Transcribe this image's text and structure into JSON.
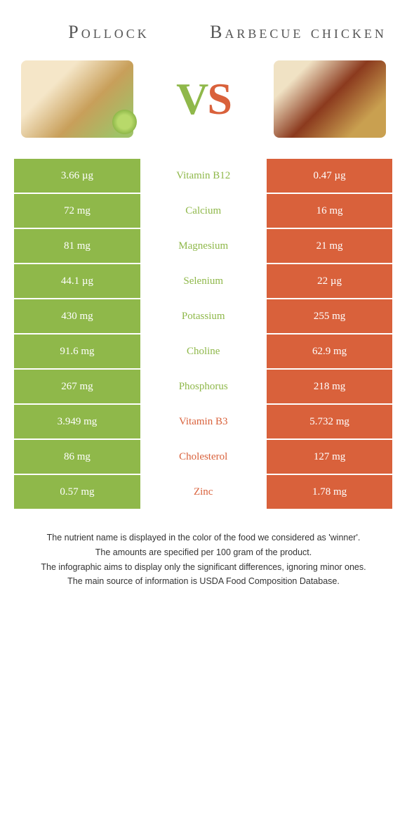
{
  "colors": {
    "left": "#8fb84a",
    "right": "#d9613b",
    "leftText": "#8fb84a",
    "rightText": "#d9613b"
  },
  "header": {
    "left": "Pollock",
    "right": "Barbecue chicken"
  },
  "vs": {
    "v": "V",
    "s": "S"
  },
  "rows": [
    {
      "left": "3.66 µg",
      "label": "Vitamin B12",
      "right": "0.47 µg",
      "winner": "left"
    },
    {
      "left": "72 mg",
      "label": "Calcium",
      "right": "16 mg",
      "winner": "left"
    },
    {
      "left": "81 mg",
      "label": "Magnesium",
      "right": "21 mg",
      "winner": "left"
    },
    {
      "left": "44.1 µg",
      "label": "Selenium",
      "right": "22 µg",
      "winner": "left"
    },
    {
      "left": "430 mg",
      "label": "Potassium",
      "right": "255 mg",
      "winner": "left"
    },
    {
      "left": "91.6 mg",
      "label": "Choline",
      "right": "62.9 mg",
      "winner": "left"
    },
    {
      "left": "267 mg",
      "label": "Phosphorus",
      "right": "218 mg",
      "winner": "left"
    },
    {
      "left": "3.949 mg",
      "label": "Vitamin B3",
      "right": "5.732 mg",
      "winner": "right"
    },
    {
      "left": "86 mg",
      "label": "Cholesterol",
      "right": "127 mg",
      "winner": "right"
    },
    {
      "left": "0.57 mg",
      "label": "Zinc",
      "right": "1.78 mg",
      "winner": "right"
    }
  ],
  "footnotes": [
    "The nutrient name is displayed in the color of the food we considered as 'winner'.",
    "The amounts are specified per 100 gram of the product.",
    "The infographic aims to display only the significant differences, ignoring minor ones.",
    "The main source of information is USDA Food Composition Database."
  ]
}
